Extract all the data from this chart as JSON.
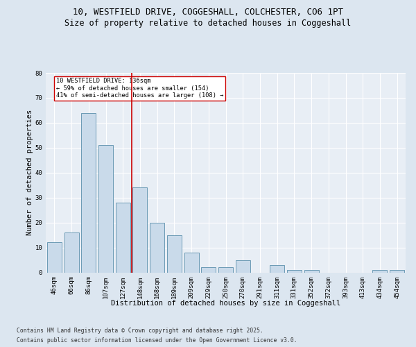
{
  "title_line1": "10, WESTFIELD DRIVE, COGGESHALL, COLCHESTER, CO6 1PT",
  "title_line2": "Size of property relative to detached houses in Coggeshall",
  "xlabel": "Distribution of detached houses by size in Coggeshall",
  "ylabel": "Number of detached properties",
  "footer_line1": "Contains HM Land Registry data © Crown copyright and database right 2025.",
  "footer_line2": "Contains public sector information licensed under the Open Government Licence v3.0.",
  "categories": [
    "46sqm",
    "66sqm",
    "86sqm",
    "107sqm",
    "127sqm",
    "148sqm",
    "168sqm",
    "189sqm",
    "209sqm",
    "229sqm",
    "250sqm",
    "270sqm",
    "291sqm",
    "311sqm",
    "331sqm",
    "352sqm",
    "372sqm",
    "393sqm",
    "413sqm",
    "434sqm",
    "454sqm"
  ],
  "values": [
    12,
    16,
    64,
    51,
    28,
    34,
    20,
    15,
    8,
    2,
    2,
    5,
    0,
    3,
    1,
    1,
    0,
    0,
    0,
    1,
    1
  ],
  "bar_color": "#c9daea",
  "bar_edge_color": "#5a8fac",
  "vline_x": 4.5,
  "vline_color": "#cc0000",
  "annotation_text": "10 WESTFIELD DRIVE: 136sqm\n← 59% of detached houses are smaller (154)\n41% of semi-detached houses are larger (108) →",
  "annotation_box_facecolor": "#ffffff",
  "annotation_box_edgecolor": "#cc0000",
  "ylim": [
    0,
    80
  ],
  "yticks": [
    0,
    10,
    20,
    30,
    40,
    50,
    60,
    70,
    80
  ],
  "bg_color": "#dce6f0",
  "plot_bg_color": "#e8eef5",
  "grid_color": "#ffffff",
  "title_fontsize": 9,
  "subtitle_fontsize": 8.5,
  "axis_label_fontsize": 7.5,
  "tick_fontsize": 6.5,
  "annotation_fontsize": 6.2,
  "footer_fontsize": 5.8
}
